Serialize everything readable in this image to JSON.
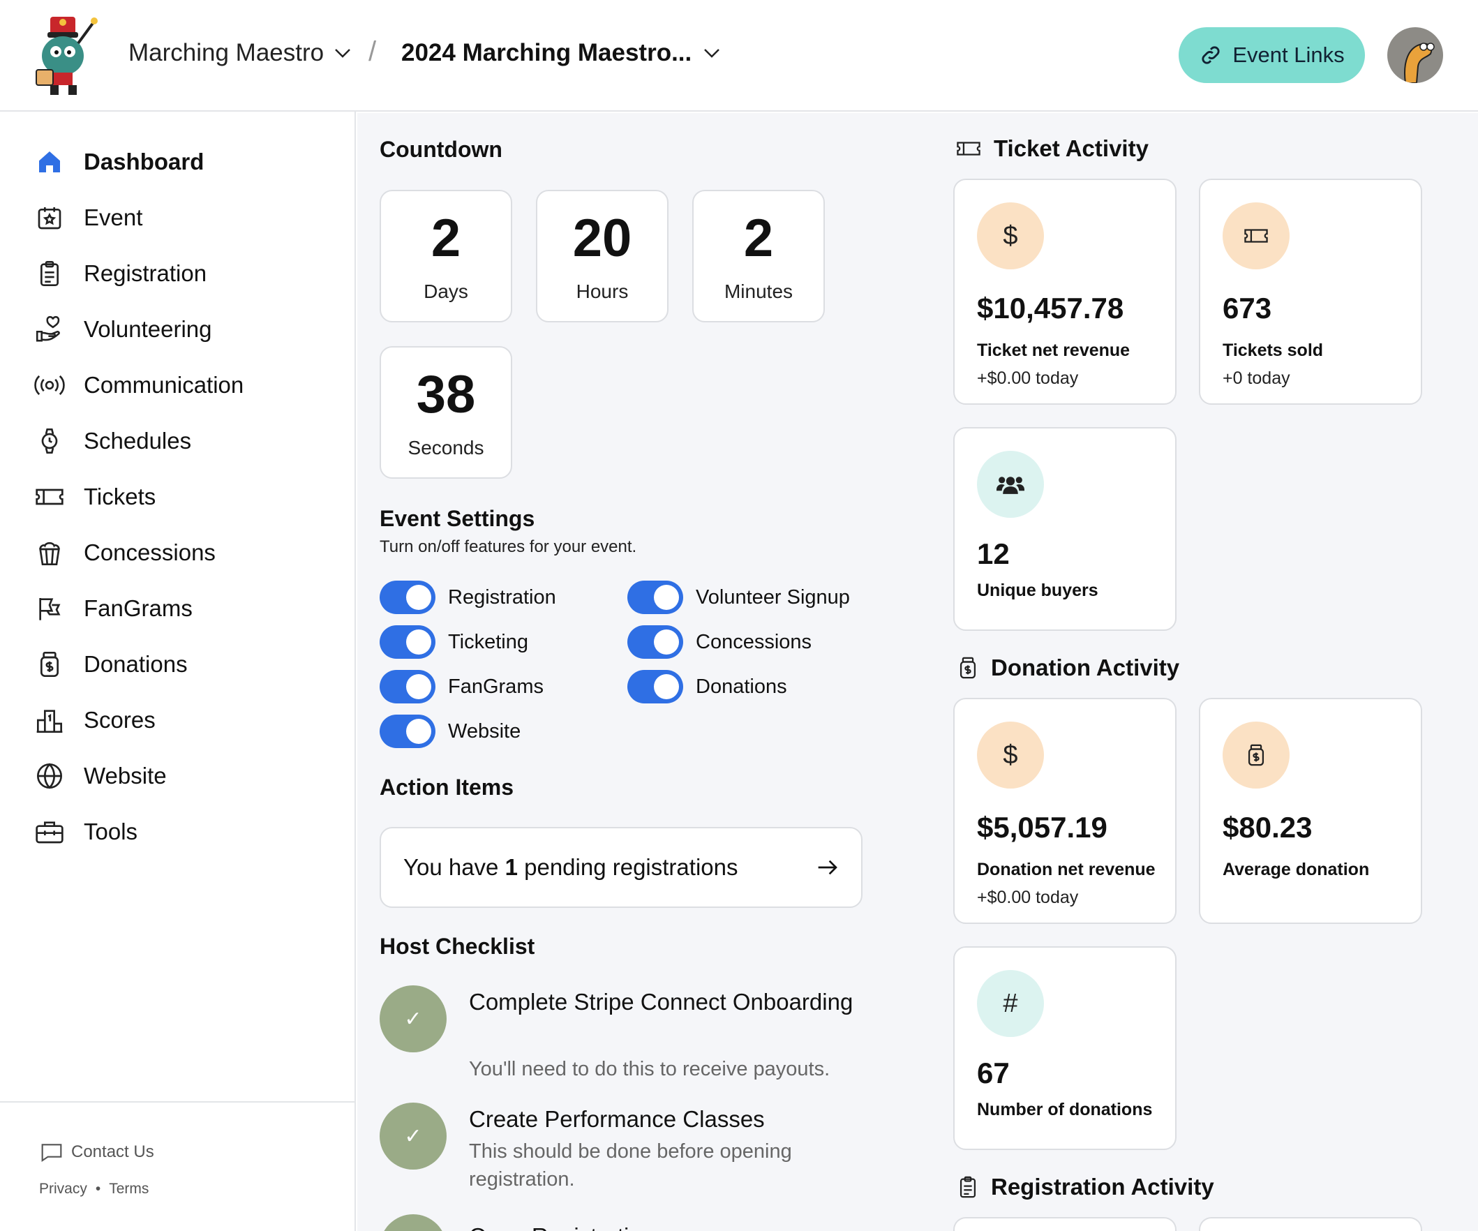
{
  "header": {
    "org": "Marching Maestro",
    "event": "2024 Marching Maestro...",
    "event_links": "Event Links"
  },
  "sidebar": {
    "items": [
      {
        "label": "Dashboard",
        "icon": "home-icon"
      },
      {
        "label": "Event",
        "icon": "calendar-star-icon"
      },
      {
        "label": "Registration",
        "icon": "clipboard-icon"
      },
      {
        "label": "Volunteering",
        "icon": "hand-heart-icon"
      },
      {
        "label": "Communication",
        "icon": "broadcast-icon"
      },
      {
        "label": "Schedules",
        "icon": "watch-icon"
      },
      {
        "label": "Tickets",
        "icon": "ticket-icon"
      },
      {
        "label": "Concessions",
        "icon": "popcorn-icon"
      },
      {
        "label": "FanGrams",
        "icon": "megaphone-icon"
      },
      {
        "label": "Donations",
        "icon": "donation-jar-icon"
      },
      {
        "label": "Scores",
        "icon": "podium-icon"
      },
      {
        "label": "Website",
        "icon": "globe-icon"
      },
      {
        "label": "Tools",
        "icon": "toolbox-icon"
      }
    ],
    "contact": "Contact Us",
    "privacy": "Privacy",
    "dot": "•",
    "terms": "Terms"
  },
  "countdown": {
    "title": "Countdown",
    "days": "2",
    "days_label": "Days",
    "hours": "20",
    "hours_label": "Hours",
    "minutes": "2",
    "minutes_label": "Minutes",
    "seconds": "38",
    "seconds_label": "Seconds"
  },
  "settings": {
    "title": "Event Settings",
    "subtitle": "Turn on/off features for your event.",
    "toggles": [
      "Registration",
      "Volunteer Signup",
      "Ticketing",
      "Concessions",
      "FanGrams",
      "Donations",
      "Website"
    ]
  },
  "actions": {
    "title": "Action Items",
    "pending_prefix": "You have ",
    "pending_count": "1",
    "pending_suffix": " pending registrations"
  },
  "checklist": {
    "title": "Host Checklist",
    "items": [
      {
        "title": "Complete Stripe Connect Onboarding",
        "desc": "You'll need to do this to receive payouts."
      },
      {
        "title": "Create Performance Classes",
        "desc": "This should be done before opening registration."
      },
      {
        "title": "Open Registration"
      }
    ]
  },
  "ticket_activity": {
    "title": "Ticket Activity",
    "revenue": "$10,457.78",
    "revenue_label": "Ticket net revenue",
    "revenue_delta": "+$0.00 today",
    "sold": "673",
    "sold_label": "Tickets sold",
    "sold_delta": "+0 today",
    "buyers": "12",
    "buyers_label": "Unique buyers"
  },
  "donation_activity": {
    "title": "Donation Activity",
    "revenue": "$5,057.19",
    "revenue_label": "Donation net revenue",
    "revenue_delta": "+$0.00 today",
    "average": "$80.23",
    "average_label": "Average donation",
    "count": "67",
    "count_label": "Number of donations"
  },
  "registration_activity": {
    "title": "Registration Activity"
  }
}
